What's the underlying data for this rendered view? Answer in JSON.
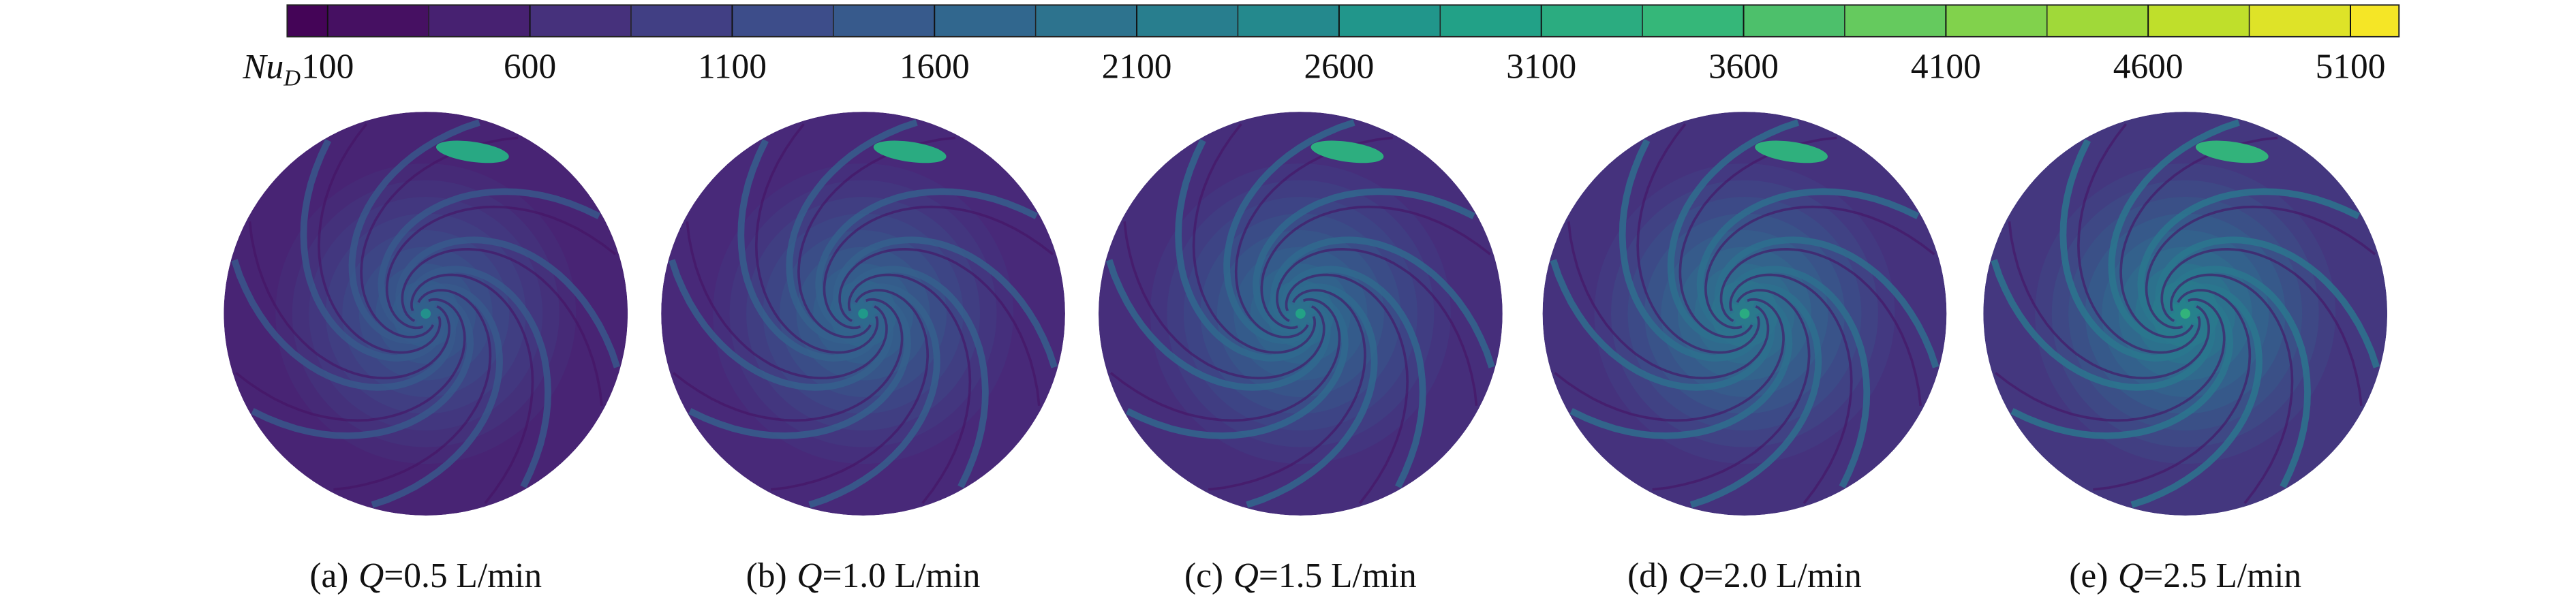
{
  "chart_data": {
    "type": "colorbar-panels",
    "colorbar": {
      "label": "Nu",
      "label_subscript": "D",
      "colormap": "viridis",
      "lim": [
        0,
        5220
      ],
      "ticks": [
        100,
        600,
        1100,
        1600,
        2100,
        2600,
        3100,
        3600,
        4100,
        4600,
        5100
      ]
    },
    "panels": [
      {
        "tag": "(a)",
        "variable": "Q",
        "condition": "=0.5 L/min"
      },
      {
        "tag": "(b)",
        "variable": "Q",
        "condition": "=1.0 L/min"
      },
      {
        "tag": "(c)",
        "variable": "Q",
        "condition": "=1.5 L/min"
      },
      {
        "tag": "(d)",
        "variable": "Q",
        "condition": "=2.0 L/min"
      },
      {
        "tag": "(e)",
        "variable": "Q",
        "condition": "=2.5 L/min"
      }
    ]
  }
}
